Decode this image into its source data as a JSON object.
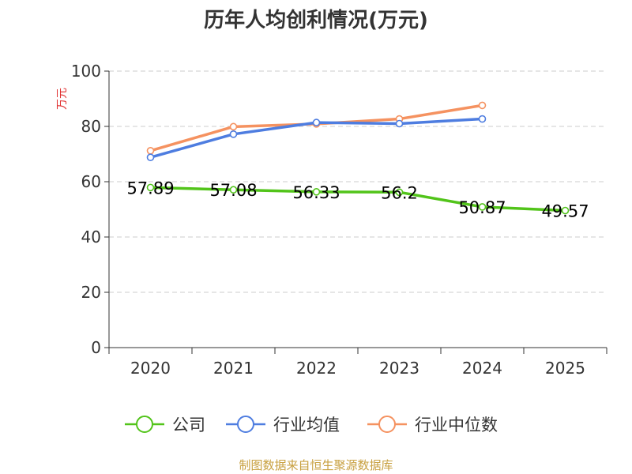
{
  "chart_data": {
    "type": "line",
    "title": "历年人均创利情况(万元)",
    "ylabel": "万元",
    "xlabel": "",
    "categories": [
      "2020",
      "2021",
      "2022",
      "2023",
      "2024",
      "2025"
    ],
    "ylim": [
      0,
      100
    ],
    "yticks": [
      0,
      20,
      40,
      60,
      80,
      100
    ],
    "grid": true,
    "legend_position": "bottom",
    "series": [
      {
        "name": "公司",
        "color": "#52c41a",
        "values": [
          57.89,
          57.08,
          56.33,
          56.2,
          50.87,
          49.57
        ],
        "labels": [
          "57.89",
          "57.08",
          "56.33",
          "56.2",
          "50.87",
          "49.57"
        ]
      },
      {
        "name": "行业均值",
        "color": "#4e7de0",
        "values": [
          68.8,
          77.2,
          81.4,
          81.0,
          82.7,
          null
        ]
      },
      {
        "name": "行业中位数",
        "color": "#f59260",
        "values": [
          71.2,
          79.9,
          80.9,
          82.7,
          87.6,
          null
        ]
      }
    ]
  },
  "source": "制图数据来自恒生聚源数据库"
}
